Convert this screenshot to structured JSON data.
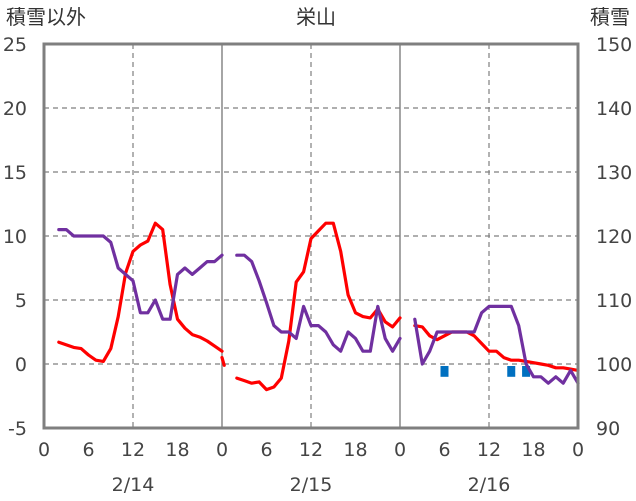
{
  "chart_data": {
    "type": "line",
    "title": "栄山",
    "left_axis_label": "積雪以外",
    "right_axis_label": "積雪",
    "left_ylim": [
      -5,
      25
    ],
    "left_ticks": [
      "25",
      "20",
      "15",
      "10",
      "5",
      "0",
      "-5"
    ],
    "right_ylim": [
      90,
      150
    ],
    "right_ticks": [
      "150",
      "140",
      "130",
      "120",
      "110",
      "100",
      "90"
    ],
    "x_tick_labels": [
      "0",
      "6",
      "12",
      "18",
      "0",
      "6",
      "12",
      "18",
      "0",
      "6",
      "12",
      "18",
      "0"
    ],
    "day_labels": [
      "2/14",
      "2/15",
      "2/16"
    ],
    "grid": true,
    "colors": {
      "red_line": "#ff0000",
      "purple_line": "#7030a0",
      "bars": "#0070c0",
      "frame": "#7f7f7f",
      "grid": "#7f7f7f"
    },
    "series": [
      {
        "name": "",
        "axis": "left",
        "color": "#ff0000",
        "segments": [
          {
            "x": [
              2,
              4,
              5,
              6,
              7,
              8,
              9,
              10,
              11,
              12,
              13,
              14,
              15,
              16,
              17,
              18,
              19,
              20,
              21,
              22,
              23,
              24
            ],
            "y": [
              1.7,
              1.3,
              1.2,
              0.7,
              0.3,
              0.2,
              1.2,
              3.7,
              7.1,
              8.8,
              9.3,
              9.6,
              11.0,
              10.5,
              6.2,
              3.5,
              2.8,
              2.3,
              2.1,
              1.8,
              1.4,
              1.0
            ]
          },
          {
            "x": [
              24,
              24.3
            ],
            "y": [
              0.5,
              -0.1
            ]
          },
          {
            "x": [
              26,
              27,
              28,
              29,
              30,
              31,
              32,
              33,
              34,
              35,
              36,
              37,
              38,
              39,
              40,
              41,
              42,
              43,
              44,
              45,
              46,
              47,
              48
            ],
            "y": [
              -1.1,
              -1.3,
              -1.5,
              -1.4,
              -2.0,
              -1.8,
              -1.1,
              1.8,
              6.4,
              7.2,
              9.8,
              10.4,
              11.0,
              11.0,
              8.8,
              5.4,
              4.0,
              3.7,
              3.6,
              4.3,
              3.3,
              2.9,
              3.6
            ]
          },
          {
            "x": [
              50,
              51,
              52,
              53,
              54,
              55,
              56,
              57,
              58,
              59,
              60,
              61,
              62,
              63,
              64,
              65,
              66,
              67,
              68,
              69,
              70,
              71,
              72
            ],
            "y": [
              3.0,
              2.9,
              2.2,
              1.9,
              2.2,
              2.5,
              2.5,
              2.5,
              2.2,
              1.6,
              1.0,
              1.0,
              0.5,
              0.3,
              0.3,
              0.2,
              0.1,
              0.0,
              -0.1,
              -0.3,
              -0.3,
              -0.4,
              -0.5
            ]
          }
        ]
      },
      {
        "name": "",
        "axis": "left",
        "color": "#7030a0",
        "segments": [
          {
            "x": [
              2,
              3,
              4,
              5,
              6,
              7,
              8,
              9,
              10,
              11,
              12,
              13,
              14,
              15,
              16,
              17,
              18,
              19,
              20,
              21,
              22,
              23,
              24
            ],
            "y": [
              10.5,
              10.5,
              10.0,
              10.0,
              10.0,
              10.0,
              10.0,
              9.5,
              7.5,
              7.0,
              6.5,
              4.0,
              4.0,
              5.0,
              3.5,
              3.5,
              7.0,
              7.5,
              7.0,
              7.5,
              8.0,
              8.0,
              8.5
            ]
          },
          {
            "x": [
              26,
              27,
              28,
              29,
              30,
              31,
              32,
              33,
              34,
              35,
              36,
              37,
              38,
              39,
              40,
              41,
              42,
              43,
              44,
              45,
              46,
              47,
              48
            ],
            "y": [
              8.5,
              8.5,
              8.0,
              6.5,
              4.8,
              3.0,
              2.5,
              2.5,
              2.0,
              4.5,
              3.0,
              3.0,
              2.5,
              1.5,
              1.0,
              2.5,
              2.0,
              1.0,
              1.0,
              4.5,
              2.0,
              1.0,
              2.0
            ]
          },
          {
            "x": [
              50,
              51,
              52,
              53,
              54,
              55,
              56,
              57,
              58,
              59,
              60,
              61,
              62,
              63,
              64,
              65,
              66,
              67,
              68,
              69,
              70,
              71,
              72
            ],
            "y": [
              3.5,
              0.0,
              1.0,
              2.5,
              2.5,
              2.5,
              2.5,
              2.5,
              2.5,
              4.0,
              4.5,
              4.5,
              4.5,
              4.5,
              3.0,
              0.0,
              -1.0,
              -1.0,
              -1.5,
              -1.0,
              -1.5,
              -0.5,
              -1.5
            ]
          }
        ]
      },
      {
        "name": "",
        "axis": "left",
        "type": "bar",
        "color": "#0070c0",
        "x": [
          54,
          63,
          65
        ],
        "y": [
          -1.0,
          -1.0,
          -1.0
        ]
      }
    ]
  }
}
